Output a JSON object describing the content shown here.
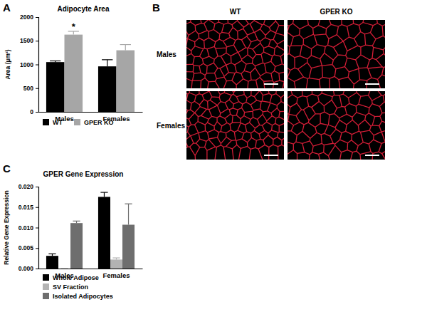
{
  "chart_data": [
    {
      "panel": "A",
      "type": "bar",
      "title": "Adipocyte Area",
      "y_label": "Area (µm²)",
      "categories": [
        "Males",
        "Females"
      ],
      "series": [
        {
          "name": "WT",
          "color": "#000000",
          "values": [
            1050,
            960
          ],
          "errors": [
            25,
            140
          ]
        },
        {
          "name": "GPER KO",
          "color": "#a6a6a6",
          "values": [
            1630,
            1300
          ],
          "errors": [
            70,
            120
          ]
        }
      ],
      "ylim": [
        0,
        2000
      ],
      "yticks": [
        0,
        500,
        1000,
        1500,
        2000
      ],
      "legend": "bottom",
      "grid": false,
      "annotations": [
        {
          "text": "*",
          "series": 1,
          "category": 0
        }
      ]
    },
    {
      "panel": "C",
      "type": "bar",
      "title": "GPER Gene Expression",
      "y_label": "Relative Gene Expression",
      "categories": [
        "Males",
        "Females"
      ],
      "series": [
        {
          "name": "Whole Adipose",
          "color": "#000000",
          "values": [
            0.0031,
            0.0175
          ],
          "errors": [
            0.0005,
            0.0011
          ]
        },
        {
          "name": "SV Fraction",
          "color": "#b3b3b3",
          "values": [
            0,
            0.0022
          ],
          "errors": [
            0,
            0.0004
          ]
        },
        {
          "name": "Isolated Adipocytes",
          "color": "#6e6e6e",
          "values": [
            0.0111,
            0.0107
          ],
          "errors": [
            0.0005,
            0.0051
          ]
        }
      ],
      "ylim": [
        0,
        0.02
      ],
      "yticks": [
        {
          "value": 0,
          "label": "0.000"
        },
        {
          "value": 0.005,
          "label": "0.005"
        },
        {
          "value": 0.01,
          "label": "0.010"
        },
        {
          "value": 0.015,
          "label": "0.015"
        },
        {
          "value": 0.02,
          "label": "0.020"
        }
      ],
      "legend": "bottom",
      "grid": false
    }
  ],
  "images": {
    "panel": "B",
    "columns": [
      "WT",
      "GPER KO"
    ],
    "rows": [
      "Males",
      "Females"
    ]
  }
}
